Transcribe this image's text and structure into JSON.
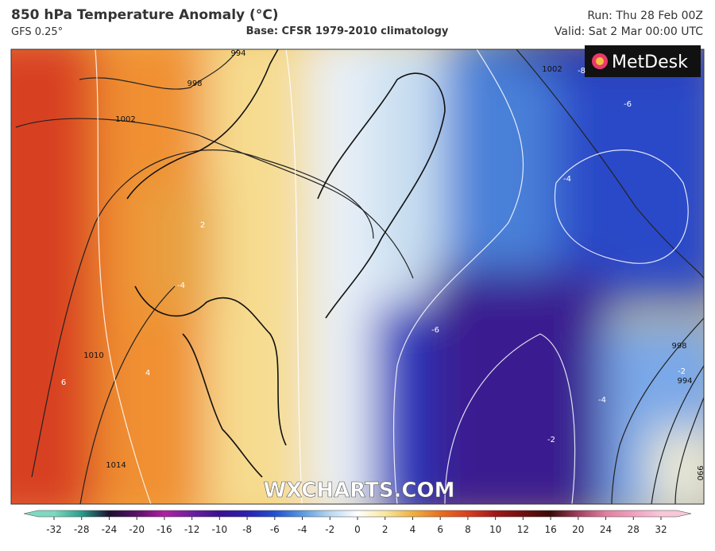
{
  "header": {
    "title": "850 hPa Temperature Anomaly (°C)",
    "model": "GFS 0.25°",
    "base": "Base: CFSR 1979-2010 climatology",
    "run": "Run: Thu 28 Feb 00Z",
    "valid": "Valid: Sat 2 Mar 00:00 UTC"
  },
  "logo": "MetDesk",
  "watermark": "WXCHARTS.COM",
  "isobar_labels": [
    994,
    998,
    1002,
    1010,
    1014,
    1002,
    998,
    994,
    990
  ],
  "anomaly_labels": [
    -8,
    -6,
    -4,
    -6,
    -4,
    -2,
    -2,
    2,
    -4,
    4,
    6
  ],
  "colorbar": {
    "ticks": [
      -32,
      -28,
      -24,
      -20,
      -16,
      -12,
      -10,
      -8,
      -6,
      -4,
      -2,
      0,
      2,
      4,
      6,
      8,
      10,
      12,
      16,
      20,
      24,
      28,
      32
    ],
    "colors": [
      "#7fd8c0",
      "#2a9d8a",
      "#1a1030",
      "#5a106a",
      "#b020a0",
      "#6a20a0",
      "#3a1090",
      "#2a20b0",
      "#2050d0",
      "#5a9ae0",
      "#b8d8f0",
      "#ffffff",
      "#f8e8a0",
      "#f0b040",
      "#e87020",
      "#d84020",
      "#a01818",
      "#701010",
      "#3a0a0a",
      "#a04060",
      "#e080a0",
      "#f0a0c0",
      "#f8c8d8"
    ]
  }
}
